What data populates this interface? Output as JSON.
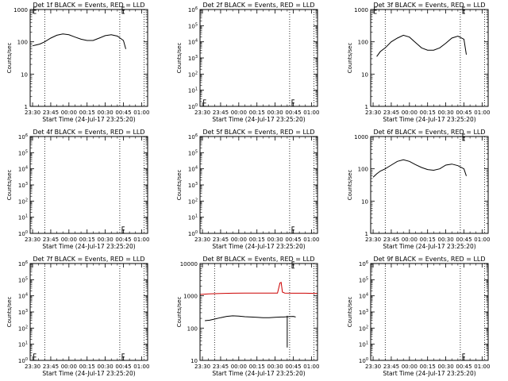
{
  "figure": {
    "background": "#ffffff",
    "event_color": "#000000",
    "lld_color": "#cc0000",
    "tick_labels_x": [
      "23:30",
      "23:45",
      "00:00",
      "00:15",
      "00:30",
      "00:45",
      "01:00"
    ],
    "x_title": "Start Time (24-Jul-17 23:25:20)",
    "y_title": "Counts/sec"
  },
  "chart_data": [
    {
      "type": "line",
      "title": "Det 1f BLACK = Events, RED = LLD",
      "xlabel": "Start Time (24-Jul-17 23:25:20)",
      "ylabel": "Counts/sec",
      "ylog": true,
      "ylim": [
        1,
        1000
      ],
      "ytick_values": [
        1,
        10,
        100,
        1000
      ],
      "ytick_labels": [
        "1",
        "10",
        "100",
        "1000"
      ],
      "xlim": [
        "23:28",
        "01:05"
      ],
      "vlines": [
        "23:40",
        "00:42",
        "01:02"
      ],
      "series": [
        {
          "role": "events",
          "color": "#000000",
          "x": [
            "23:30",
            "23:33",
            "23:36",
            "23:40",
            "23:45",
            "23:50",
            "23:55",
            "00:00",
            "00:05",
            "00:10",
            "00:15",
            "00:20",
            "00:25",
            "00:30",
            "00:35",
            "00:40",
            "00:45",
            "00:47"
          ],
          "y": [
            75,
            80,
            85,
            100,
            130,
            160,
            175,
            165,
            140,
            120,
            110,
            110,
            130,
            155,
            165,
            150,
            110,
            60
          ]
        }
      ],
      "markers": [
        {
          "x": "23:31",
          "y": 950
        },
        {
          "x": "00:44",
          "y": 950
        }
      ]
    },
    {
      "type": "line",
      "title": "Det 2f BLACK = Events, RED = LLD",
      "xlabel": "Start Time (24-Jul-17 23:25:20)",
      "ylabel": "Counts/sec",
      "ylog": true,
      "ylim": [
        1,
        1000000
      ],
      "ytick_values": [
        1,
        10,
        100,
        1000,
        10000,
        100000,
        1000000
      ],
      "ytick_labels": [
        "10^0",
        "10^1",
        "10^2",
        "10^3",
        "10^4",
        "10^5",
        "10^6"
      ],
      "xlim": [
        "23:28",
        "01:05"
      ],
      "vlines": [
        "00:42",
        "01:02"
      ],
      "series": [],
      "markers": [
        {
          "x": "23:31",
          "y": 1.6
        },
        {
          "x": "00:44",
          "y": 1.6
        }
      ]
    },
    {
      "type": "line",
      "title": "Det 3f BLACK = Events, RED = LLD",
      "xlabel": "Start Time (24-Jul-17 23:25:20)",
      "ylabel": "Counts/sec",
      "ylog": true,
      "ylim": [
        1,
        1000
      ],
      "ytick_values": [
        1,
        10,
        100,
        1000
      ],
      "ytick_labels": [
        "1",
        "10",
        "100",
        "1000"
      ],
      "xlim": [
        "23:28",
        "01:05"
      ],
      "vlines": [
        "23:40",
        "00:42",
        "01:02"
      ],
      "series": [
        {
          "role": "events",
          "color": "#000000",
          "x": [
            "23:33",
            "23:36",
            "23:40",
            "23:45",
            "23:50",
            "23:55",
            "00:00",
            "00:05",
            "00:10",
            "00:15",
            "00:20",
            "00:25",
            "00:30",
            "00:35",
            "00:40",
            "00:45",
            "00:47"
          ],
          "y": [
            35,
            50,
            65,
            100,
            130,
            160,
            140,
            95,
            65,
            55,
            55,
            65,
            90,
            130,
            150,
            120,
            40
          ]
        },
        {
          "role": "lld",
          "color": "#cc0000",
          "x": [
            "23:28",
            "01:05"
          ],
          "y": [
            1000,
            1000
          ]
        }
      ],
      "markers": [
        {
          "x": "23:31",
          "y": 950
        },
        {
          "x": "00:44",
          "y": 950
        }
      ]
    },
    {
      "type": "line",
      "title": "Det 4f BLACK = Events, RED = LLD",
      "xlabel": "Start Time (24-Jul-17 23:25:20)",
      "ylabel": "Counts/sec",
      "ylog": true,
      "ylim": [
        1,
        1000000
      ],
      "ytick_values": [
        1,
        10,
        100,
        1000,
        10000,
        100000,
        1000000
      ],
      "ytick_labels": [
        "10^0",
        "10^1",
        "10^2",
        "10^3",
        "10^4",
        "10^5",
        "10^6"
      ],
      "xlim": [
        "23:28",
        "01:05"
      ],
      "vlines": [
        "23:40",
        "00:42",
        "01:02"
      ],
      "series": [],
      "markers": [
        {
          "x": "00:44",
          "y": 1.6
        }
      ]
    },
    {
      "type": "line",
      "title": "Det 5f BLACK = Events, RED = LLD",
      "xlabel": "Start Time (24-Jul-17 23:25:20)",
      "ylabel": "Counts/sec",
      "ylog": true,
      "ylim": [
        1,
        1000000
      ],
      "ytick_values": [
        1,
        10,
        100,
        1000,
        10000,
        100000,
        1000000
      ],
      "ytick_labels": [
        "10^0",
        "10^1",
        "10^2",
        "10^3",
        "10^4",
        "10^5",
        "10^6"
      ],
      "xlim": [
        "23:28",
        "01:05"
      ],
      "vlines": [
        "00:42",
        "01:02"
      ],
      "series": [],
      "markers": [
        {
          "x": "00:44",
          "y": 1.6
        }
      ]
    },
    {
      "type": "line",
      "title": "Det 6f BLACK = Events, RED = LLD",
      "xlabel": "Start Time (24-Jul-17 23:25:20)",
      "ylabel": "Counts/sec",
      "ylog": true,
      "ylim": [
        1,
        1000
      ],
      "ytick_values": [
        1,
        10,
        100,
        1000
      ],
      "ytick_labels": [
        "1",
        "10",
        "100",
        "1000"
      ],
      "xlim": [
        "23:28",
        "01:05"
      ],
      "vlines": [
        "23:40",
        "00:42",
        "01:02"
      ],
      "series": [
        {
          "role": "events",
          "color": "#000000",
          "x": [
            "23:30",
            "23:33",
            "23:36",
            "23:40",
            "23:45",
            "23:50",
            "23:55",
            "00:00",
            "00:05",
            "00:10",
            "00:15",
            "00:20",
            "00:25",
            "00:30",
            "00:35",
            "00:40",
            "00:45",
            "00:47"
          ],
          "y": [
            55,
            70,
            85,
            100,
            130,
            170,
            190,
            170,
            135,
            110,
            95,
            90,
            100,
            130,
            140,
            125,
            100,
            60
          ]
        }
      ],
      "markers": [
        {
          "x": "00:44",
          "y": 950
        }
      ]
    },
    {
      "type": "line",
      "title": "Det 7f BLACK = Events, RED = LLD",
      "xlabel": "Start Time (24-Jul-17 23:25:20)",
      "ylabel": "Counts/sec",
      "ylog": true,
      "ylim": [
        1,
        1000000
      ],
      "ytick_values": [
        1,
        10,
        100,
        1000,
        10000,
        100000,
        1000000
      ],
      "ytick_labels": [
        "10^0",
        "10^1",
        "10^2",
        "10^3",
        "10^4",
        "10^5",
        "10^6"
      ],
      "xlim": [
        "23:28",
        "01:05"
      ],
      "vlines": [
        "23:40",
        "00:42",
        "01:02"
      ],
      "series": [],
      "markers": [
        {
          "x": "23:31",
          "y": 1.6
        },
        {
          "x": "00:44",
          "y": 1.6
        }
      ]
    },
    {
      "type": "line",
      "title": "Det 8f BLACK = Events, RED = LLD",
      "xlabel": "Start Time (24-Jul-17 23:25:20)",
      "ylabel": "Counts/sec",
      "ylog": true,
      "ylim": [
        10,
        10000
      ],
      "ytick_values": [
        10,
        100,
        1000,
        10000
      ],
      "ytick_labels": [
        "10",
        "100",
        "1000",
        "10000"
      ],
      "xlim": [
        "23:28",
        "01:05"
      ],
      "vlines": [
        "23:40",
        "00:42",
        "01:02"
      ],
      "series": [
        {
          "role": "lld",
          "color": "#cc0000",
          "x": [
            "23:28",
            "23:35",
            "23:45",
            "23:55",
            "00:05",
            "00:15",
            "00:25",
            "00:32",
            "00:34",
            "00:35",
            "00:36",
            "00:38",
            "00:45",
            "00:55",
            "01:05"
          ],
          "y": [
            1100,
            1150,
            1180,
            1200,
            1210,
            1220,
            1220,
            1220,
            2500,
            2600,
            1300,
            1220,
            1200,
            1200,
            1180
          ]
        },
        {
          "role": "events",
          "color": "#000000",
          "x": [
            "23:32",
            "23:36",
            "23:40",
            "23:45",
            "23:50",
            "23:55",
            "00:00",
            "00:05",
            "00:10",
            "00:15",
            "00:20",
            "00:25",
            "00:30",
            "00:35",
            "00:37",
            "00:40",
            "00:45",
            "00:47"
          ],
          "y": [
            170,
            175,
            190,
            210,
            230,
            240,
            235,
            225,
            220,
            215,
            210,
            210,
            215,
            220,
            220,
            225,
            230,
            220
          ]
        }
      ],
      "spikes": [
        {
          "x": "00:40",
          "y_low": 25,
          "y_high": 240
        }
      ],
      "markers": [
        {
          "x": "00:44",
          "y": 9000
        }
      ]
    },
    {
      "type": "line",
      "title": "Det 9f BLACK = Events, RED = LLD",
      "xlabel": "Start Time (24-Jul-17 23:25:20)",
      "ylabel": "Counts/sec",
      "ylog": true,
      "ylim": [
        1,
        1000000
      ],
      "ytick_values": [
        1,
        10,
        100,
        1000,
        10000,
        100000,
        1000000
      ],
      "ytick_labels": [
        "10^0",
        "10^1",
        "10^2",
        "10^3",
        "10^4",
        "10^5",
        "10^6"
      ],
      "xlim": [
        "23:28",
        "01:05"
      ],
      "vlines": [
        "23:40",
        "00:42",
        "01:02"
      ],
      "series": [],
      "markers": [
        {
          "x": "00:44",
          "y": 1.6
        }
      ]
    }
  ]
}
